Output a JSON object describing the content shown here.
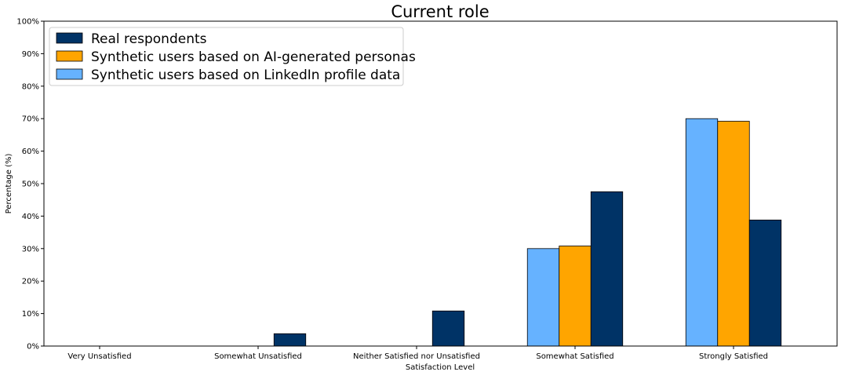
{
  "chart_data": {
    "type": "bar",
    "title": "Current role",
    "xlabel": "Satisfaction Level",
    "ylabel": "Percentage (%)",
    "ylim": [
      0,
      100
    ],
    "yticks": [
      "0%",
      "10%",
      "20%",
      "30%",
      "40%",
      "50%",
      "60%",
      "70%",
      "80%",
      "90%",
      "100%"
    ],
    "categories": [
      "Very Unsatisfied",
      "Somewhat Unsatisfied",
      "Neither Satisfied nor Unsatisfied",
      "Somewhat Satisfied",
      "Strongly Satisfied"
    ],
    "series": [
      {
        "name": "Synthetic users based on LinkedIn profile data",
        "color": "#66B2FF",
        "values": [
          0,
          0,
          0,
          30,
          70
        ]
      },
      {
        "name": "Synthetic users based on AI-generated personas",
        "color": "#FFA500",
        "values": [
          0,
          0,
          0,
          30.8,
          69.2
        ]
      },
      {
        "name": "Real respondents",
        "color": "#003366",
        "values": [
          0,
          3.8,
          10.8,
          47.5,
          38.8
        ]
      }
    ],
    "legend": {
      "position": "top-left",
      "order": [
        2,
        1,
        0
      ]
    },
    "grid": false
  }
}
